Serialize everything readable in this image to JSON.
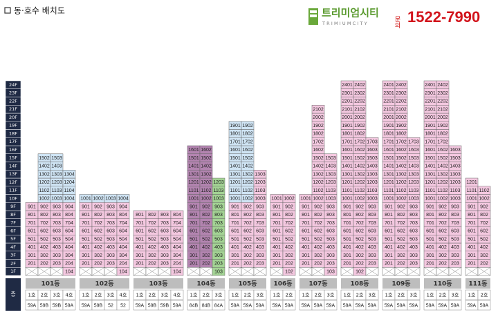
{
  "header": {
    "title": "동·호수 배치도",
    "logo": "트리미엄시티",
    "logo_sub": "TRIMIUMCITY",
    "inquiry": "문의",
    "phone": "1522-7990"
  },
  "floors": [
    "1F",
    "2F",
    "3F",
    "4F",
    "5F",
    "6F",
    "7F",
    "8F",
    "9F",
    "10F",
    "11F",
    "12F",
    "13F",
    "14F",
    "15F",
    "16F",
    "17F",
    "18F",
    "19F",
    "20F",
    "21F",
    "22F",
    "23F",
    "24F"
  ],
  "floor_header": "층",
  "buildings": [
    {
      "name": "101동",
      "lines": [
        {
          "name": "1호",
          "type": "59A",
          "segments": [
            {
              "color": "#f4c8e0",
              "units": [
                201,
                301,
                401,
                501,
                601,
                701,
                801,
                901
              ]
            }
          ]
        },
        {
          "name": "2호",
          "type": "59B",
          "segments": [
            {
              "color": "#f4c8e0",
              "units": [
                202,
                302,
                402,
                502,
                602,
                702,
                802,
                902
              ]
            },
            {
              "color": "#cfe4f4",
              "units": [
                1002,
                1102,
                1202,
                1302,
                1402,
                1502
              ]
            }
          ]
        },
        {
          "name": "3호",
          "type": "59B",
          "segments": [
            {
              "color": "#f4c8e0",
              "units": [
                203,
                303,
                403,
                503,
                603,
                703,
                803,
                903
              ]
            },
            {
              "color": "#cfe4f4",
              "units": [
                1003,
                1103,
                1203,
                1303,
                1403,
                1503
              ]
            }
          ]
        },
        {
          "name": "4호",
          "type": "59A",
          "segments": [
            {
              "color": "#f4c8e0",
              "units": [
                104,
                204,
                304,
                404,
                504,
                604,
                704,
                804,
                904
              ]
            },
            {
              "color": "#cfe4f4",
              "units": [
                1004,
                1104,
                1204,
                1304
              ]
            }
          ]
        }
      ]
    },
    {
      "name": "102동",
      "lines": [
        {
          "name": "1호",
          "type": "59A",
          "segments": [
            {
              "color": "#f4c8e0",
              "units": [
                201,
                301,
                401,
                501,
                601,
                701,
                801,
                901
              ]
            },
            {
              "color": "#cfe4f4",
              "units": [
                1001
              ]
            }
          ]
        },
        {
          "name": "2호",
          "type": "59B",
          "segments": [
            {
              "color": "#f4c8e0",
              "units": [
                202,
                302,
                402,
                502,
                602,
                702,
                802,
                902
              ]
            },
            {
              "color": "#cfe4f4",
              "units": [
                1002
              ]
            }
          ]
        },
        {
          "name": "3호",
          "type": "52",
          "segments": [
            {
              "color": "#f4c8e0",
              "units": [
                203,
                303,
                403,
                503,
                603,
                703,
                803,
                903
              ]
            },
            {
              "color": "#cfe4f4",
              "units": [
                1003
              ]
            }
          ]
        },
        {
          "name": "4호",
          "type": "52",
          "segments": [
            {
              "color": "#f4c8e0",
              "units": [
                104,
                204,
                304,
                404,
                504,
                604,
                704,
                804,
                904
              ]
            },
            {
              "color": "#cfe4f4",
              "units": [
                1004
              ]
            }
          ]
        }
      ]
    },
    {
      "name": "103동",
      "lines": [
        {
          "name": "1호",
          "type": "59A",
          "segments": [
            {
              "color": "#f4c8e0",
              "units": [
                201,
                301,
                401,
                501,
                601,
                701,
                801
              ]
            }
          ]
        },
        {
          "name": "2호",
          "type": "59B",
          "segments": [
            {
              "color": "#f4c8e0",
              "units": [
                202,
                302,
                402,
                502,
                602,
                702,
                802
              ]
            }
          ]
        },
        {
          "name": "3호",
          "type": "59B",
          "segments": [
            {
              "color": "#f4c8e0",
              "units": [
                203,
                303,
                403,
                503,
                603,
                703,
                803
              ]
            }
          ]
        },
        {
          "name": "4호",
          "type": "59A",
          "segments": [
            {
              "color": "#f4c8e0",
              "units": [
                104,
                204,
                304,
                404,
                504,
                604,
                704,
                804
              ]
            }
          ]
        }
      ]
    },
    {
      "name": "104동",
      "lines": [
        {
          "name": "1호",
          "type": "84B",
          "segments": [
            {
              "color": "#b384b0",
              "units": [
                201,
                301,
                401,
                501,
                601,
                701,
                801,
                901,
                1001,
                1101,
                1201,
                1301,
                1401,
                1501,
                1601
              ]
            }
          ]
        },
        {
          "name": "2호",
          "type": "84B",
          "segments": [
            {
              "color": "#b384b0",
              "units": [
                202,
                302,
                402,
                502,
                602,
                702,
                802,
                902,
                1002,
                1102,
                1202,
                1302,
                1402,
                1502,
                1602
              ]
            }
          ]
        },
        {
          "name": "3호",
          "type": "84A",
          "segments": [
            {
              "color": "#a3d394",
              "units": [
                103,
                203,
                303,
                403,
                503,
                603,
                703,
                803,
                903,
                1003,
                1103,
                1203
              ]
            }
          ]
        }
      ]
    },
    {
      "name": "105동",
      "lines": [
        {
          "name": "1호",
          "type": "59A",
          "segments": [
            {
              "color": "#f4c8e0",
              "units": [
                201,
                301,
                401,
                501,
                601,
                701,
                801,
                901
              ]
            },
            {
              "color": "#cfe4f4",
              "units": [
                1001,
                1101,
                1201,
                1301,
                1401,
                1501,
                1601,
                1701,
                1801,
                1901
              ]
            }
          ]
        },
        {
          "name": "2호",
          "type": "59A",
          "segments": [
            {
              "color": "#f4c8e0",
              "units": [
                202,
                302,
                402,
                502,
                602,
                702,
                802,
                902
              ]
            },
            {
              "color": "#cfe4f4",
              "units": [
                1002,
                1102,
                1202,
                1302,
                1402,
                1502,
                1602,
                1702,
                1802,
                1902
              ]
            }
          ]
        },
        {
          "name": "3호",
          "type": "59A",
          "segments": [
            {
              "color": "#f4c8e0",
              "units": [
                203,
                303,
                403,
                503,
                603,
                703,
                803,
                903,
                1003,
                1103,
                1203,
                1303
              ]
            }
          ]
        }
      ]
    },
    {
      "name": "106동",
      "lines": [
        {
          "name": "1호",
          "type": "59A",
          "segments": [
            {
              "color": "#f4c8e0",
              "units": [
                201,
                301,
                401,
                501,
                601,
                701,
                801,
                901,
                1001
              ]
            }
          ]
        },
        {
          "name": "2호",
          "type": "59A",
          "segments": [
            {
              "color": "#f4c8e0",
              "units": [
                102,
                202,
                302,
                402,
                502,
                602,
                702,
                802,
                902,
                1002
              ]
            }
          ]
        }
      ]
    },
    {
      "name": "107동",
      "lines": [
        {
          "name": "1호",
          "type": "59A",
          "segments": [
            {
              "color": "#f4c8e0",
              "units": [
                201,
                301,
                401,
                501,
                601,
                701,
                801,
                901,
                1001
              ]
            }
          ]
        },
        {
          "name": "2호",
          "type": "59A",
          "segments": [
            {
              "color": "#f4c8e0",
              "units": [
                202,
                302,
                402,
                502,
                602,
                702,
                802,
                902,
                1002,
                1102,
                1202,
                1302,
                1402,
                1502,
                1602,
                1702,
                1802,
                1902,
                2002,
                2102
              ]
            }
          ]
        },
        {
          "name": "3호",
          "type": "59A",
          "segments": [
            {
              "color": "#f4c8e0",
              "units": [
                103,
                203,
                303,
                403,
                503,
                603,
                703,
                803,
                903,
                1003,
                1103,
                1203,
                1303,
                1403,
                1503
              ]
            }
          ]
        }
      ]
    },
    {
      "name": "108동",
      "lines": [
        {
          "name": "1호",
          "type": "59A",
          "segments": [
            {
              "color": "#f4c8e0",
              "units": [
                201,
                301,
                401,
                501,
                601,
                701,
                801,
                901,
                1001,
                1101,
                1201,
                1301,
                1401,
                1501,
                1601,
                1701,
                1801,
                1901,
                2001,
                2101,
                2201,
                2301,
                2401
              ]
            }
          ]
        },
        {
          "name": "2호",
          "type": "59A",
          "segments": [
            {
              "color": "#f4c8e0",
              "units": [
                102,
                202,
                302,
                402,
                502,
                602,
                702,
                802,
                902,
                1002,
                1102,
                1202,
                1302,
                1402,
                1502,
                1602,
                1702,
                1802,
                1902,
                2002,
                2102,
                2202,
                2302,
                2402
              ]
            }
          ]
        },
        {
          "name": "3호",
          "type": "59A",
          "segments": [
            {
              "color": "#f4c8e0",
              "units": [
                203,
                303,
                403,
                503,
                603,
                703,
                803,
                903,
                1003,
                1103,
                1203,
                1303,
                1403,
                1503,
                1603,
                1703
              ]
            }
          ]
        }
      ]
    },
    {
      "name": "109동",
      "lines": [
        {
          "name": "1호",
          "type": "59A",
          "segments": [
            {
              "color": "#f4c8e0",
              "units": [
                201,
                301,
                401,
                501,
                601,
                701,
                801,
                901,
                1001,
                1101,
                1201,
                1301,
                1401,
                1501,
                1601,
                1701,
                1801,
                1901,
                2001,
                2101,
                2201,
                2301,
                2401
              ]
            }
          ]
        },
        {
          "name": "2호",
          "type": "59A",
          "segments": [
            {
              "color": "#f4c8e0",
              "units": [
                202,
                302,
                402,
                502,
                602,
                702,
                802,
                902,
                1002,
                1102,
                1202,
                1302,
                1402,
                1502,
                1602,
                1702,
                1802,
                1902,
                2002,
                2102,
                2202,
                2302,
                2402
              ]
            }
          ]
        },
        {
          "name": "3호",
          "type": "59A",
          "segments": [
            {
              "color": "#f4c8e0",
              "units": [
                203,
                303,
                403,
                503,
                603,
                703,
                803,
                903,
                1003,
                1103,
                1203,
                1303,
                1403,
                1503,
                1603,
                1703
              ]
            }
          ]
        }
      ]
    },
    {
      "name": "110동",
      "lines": [
        {
          "name": "1호",
          "type": "59A",
          "segments": [
            {
              "color": "#f4c8e0",
              "units": [
                201,
                301,
                401,
                501,
                601,
                701,
                801,
                901,
                1001,
                1101,
                1201,
                1301,
                1401,
                1501,
                1601,
                1701,
                1801,
                1901,
                2001,
                2101,
                2201,
                2301,
                2401
              ]
            }
          ]
        },
        {
          "name": "2호",
          "type": "59A",
          "segments": [
            {
              "color": "#f4c8e0",
              "units": [
                202,
                302,
                402,
                502,
                602,
                702,
                802,
                902,
                1002,
                1102,
                1202,
                1302,
                1402,
                1502,
                1602,
                1702,
                1802,
                1902,
                2002,
                2102,
                2202,
                2302,
                2402
              ]
            }
          ]
        },
        {
          "name": "3호",
          "type": "59A",
          "segments": [
            {
              "color": "#f4c8e0",
              "units": [
                203,
                303,
                403,
                503,
                603,
                703,
                803,
                903,
                1003,
                1103,
                1203,
                1303,
                1403,
                1503,
                1603
              ]
            }
          ]
        }
      ]
    },
    {
      "name": "111동",
      "lines": [
        {
          "name": "1호",
          "type": "59A",
          "segments": [
            {
              "color": "#f4c8e0",
              "units": [
                201,
                301,
                401,
                501,
                601,
                701,
                801,
                901,
                1001,
                1101,
                1201
              ]
            }
          ]
        },
        {
          "name": "2호",
          "type": "59A",
          "segments": [
            {
              "color": "#f4c8e0",
              "units": [
                202,
                302,
                402,
                502,
                602,
                702,
                802,
                902,
                1002,
                1102
              ]
            }
          ]
        }
      ]
    }
  ]
}
